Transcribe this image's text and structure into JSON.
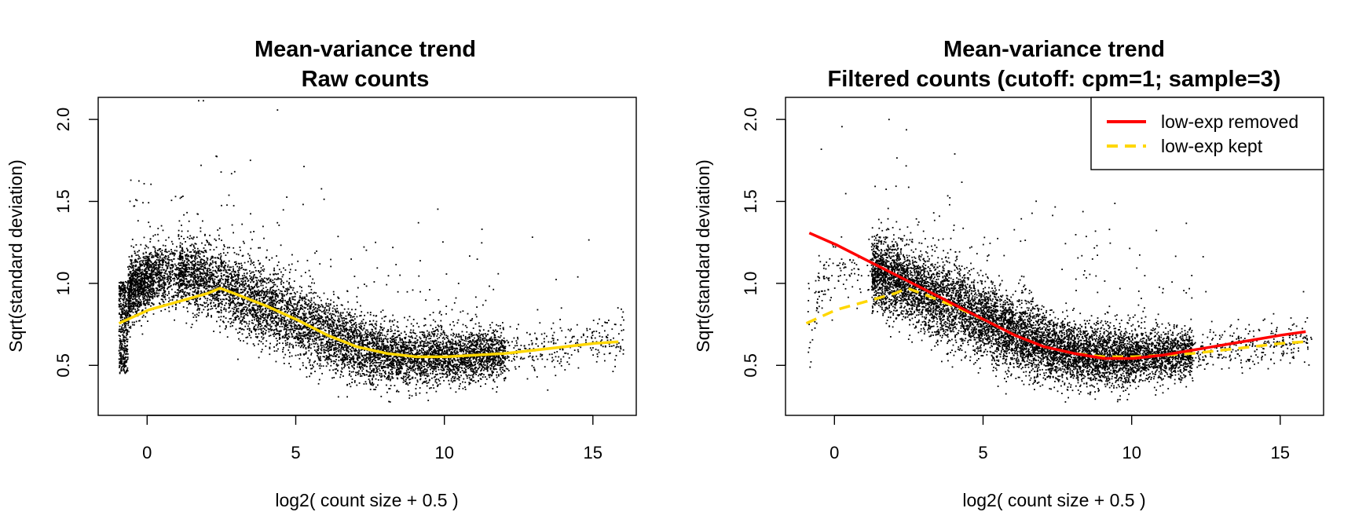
{
  "chart_data": [
    {
      "type": "scatter",
      "title": "Mean-variance trend",
      "subtitle": "Raw counts",
      "xlabel": "log2( count size + 0.5 )",
      "ylabel": "Sqrt(standard deviation)",
      "xlim": [
        -1.7,
        16.4
      ],
      "ylim": [
        0.2,
        2.1
      ],
      "xticks": [
        0,
        5,
        10,
        15
      ],
      "xtick_labels": [
        "0",
        "5",
        "10",
        "15"
      ],
      "yticks": [
        0.5,
        1.0,
        1.5,
        2.0
      ],
      "ytick_labels": [
        "0.5",
        "1.0",
        "1.5",
        "2.0"
      ],
      "grid": false,
      "legend": null,
      "series": [
        {
          "type": "line",
          "color": "#FFD700",
          "dash": "solid",
          "x": [
            -1,
            0,
            1,
            2,
            2.4,
            3,
            4,
            5,
            6,
            7,
            8,
            9,
            10,
            11,
            12,
            13,
            14,
            15,
            15.8
          ],
          "y": [
            0.75,
            0.83,
            0.88,
            0.93,
            0.96,
            0.92,
            0.85,
            0.77,
            0.68,
            0.61,
            0.57,
            0.55,
            0.55,
            0.56,
            0.57,
            0.59,
            0.61,
            0.63,
            0.64
          ]
        }
      ],
      "scatter_color": "#000000",
      "scatter_note": "dense cloud of gene points"
    },
    {
      "type": "scatter",
      "title": "Mean-variance trend",
      "subtitle": "Filtered counts (cutoff: cpm=1; sample=3)",
      "xlabel": "log2( count size + 0.5 )",
      "ylabel": "Sqrt(standard deviation)",
      "xlim": [
        -1.7,
        16.4
      ],
      "ylim": [
        0.2,
        2.1
      ],
      "xticks": [
        0,
        5,
        10,
        15
      ],
      "xtick_labels": [
        "0",
        "5",
        "10",
        "15"
      ],
      "yticks": [
        0.5,
        1.0,
        1.5,
        2.0
      ],
      "ytick_labels": [
        "0.5",
        "1.0",
        "1.5",
        "2.0"
      ],
      "grid": false,
      "legend": {
        "position": "top-right",
        "entries": [
          {
            "label": "low-exp removed",
            "color": "#FF0000",
            "dash": "solid"
          },
          {
            "label": "low-exp kept",
            "color": "#FFD700",
            "dash": "dashed"
          }
        ]
      },
      "series": [
        {
          "name": "low-exp removed",
          "type": "line",
          "color": "#FF0000",
          "dash": "solid",
          "x": [
            -0.9,
            0,
            1,
            2,
            3,
            4,
            5,
            6,
            7,
            8,
            9,
            10,
            11,
            12,
            13,
            14,
            15,
            15.8
          ],
          "y": [
            1.29,
            1.22,
            1.13,
            1.04,
            0.95,
            0.86,
            0.77,
            0.68,
            0.61,
            0.57,
            0.54,
            0.54,
            0.56,
            0.59,
            0.62,
            0.65,
            0.68,
            0.7
          ]
        },
        {
          "name": "low-exp kept",
          "type": "line",
          "color": "#FFD700",
          "dash": "dashed",
          "x": [
            -1,
            0,
            1,
            2,
            2.4,
            3,
            4,
            5,
            6,
            7,
            8,
            9,
            10,
            11,
            12,
            13,
            14,
            15,
            15.8
          ],
          "y": [
            0.75,
            0.83,
            0.88,
            0.93,
            0.96,
            0.92,
            0.85,
            0.77,
            0.68,
            0.61,
            0.57,
            0.55,
            0.55,
            0.56,
            0.57,
            0.59,
            0.61,
            0.63,
            0.64
          ]
        }
      ],
      "scatter_color": "#000000",
      "scatter_note": "dense cloud of gene points (low-expression genes removed)"
    }
  ]
}
